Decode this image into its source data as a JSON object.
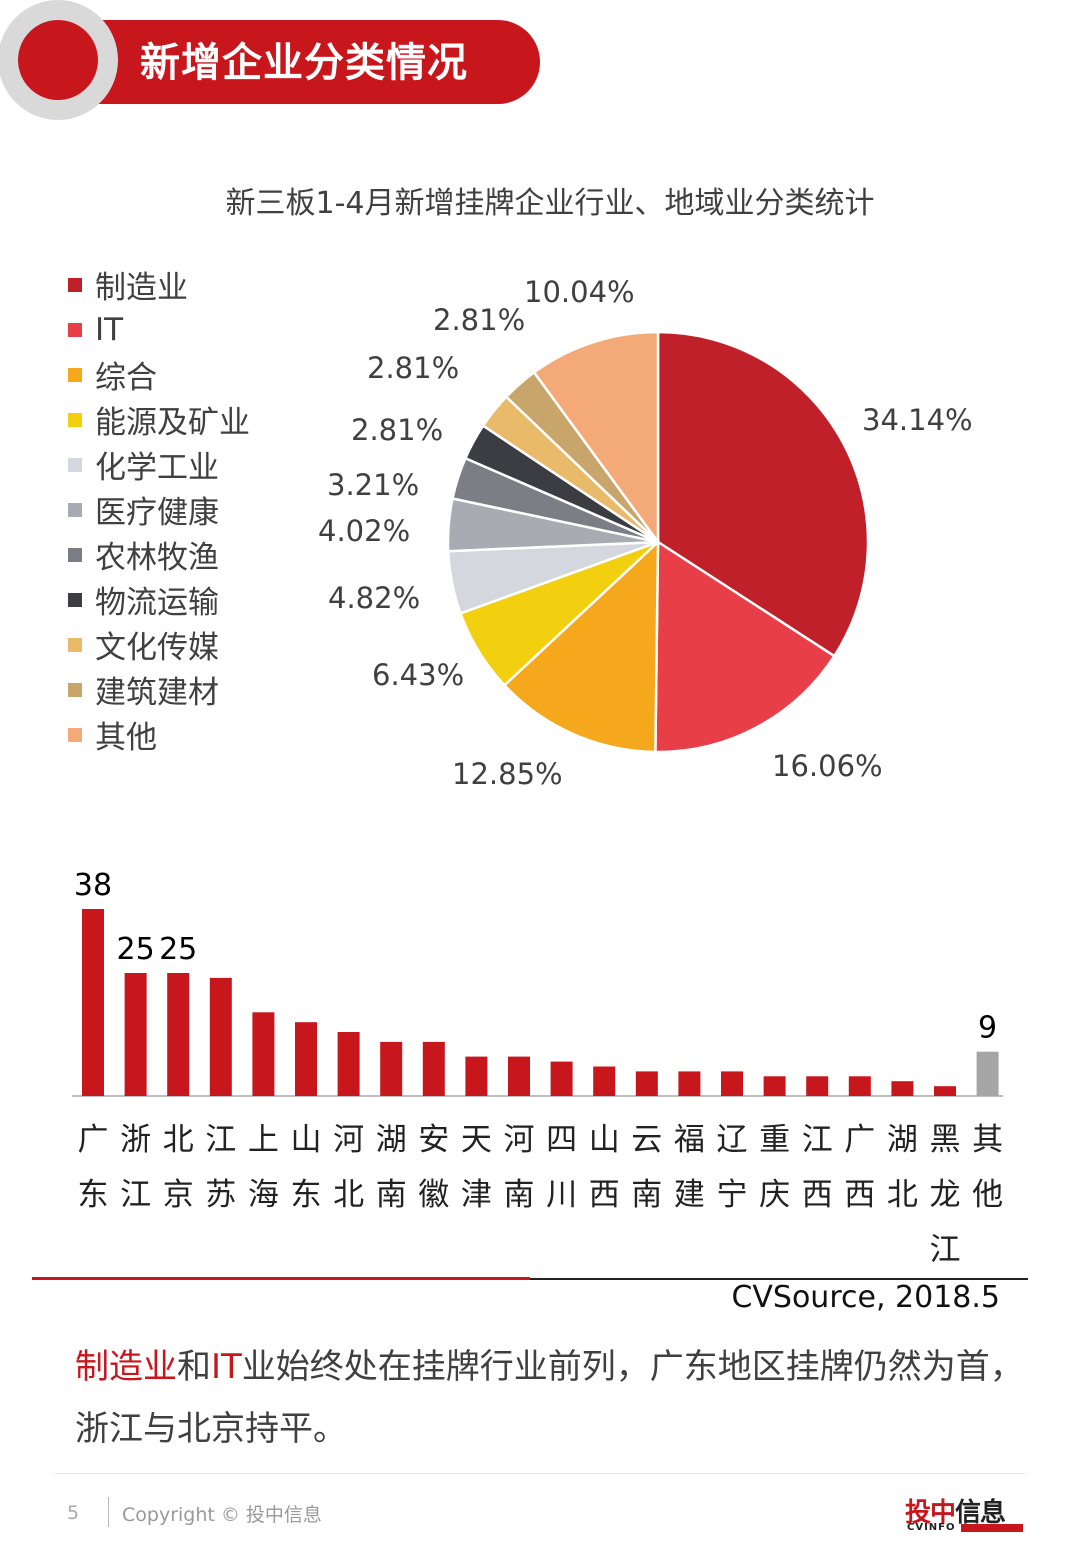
{
  "header": {
    "title": "新增企业分类情况"
  },
  "chart_title": "新三板1-4月新增挂牌企业行业、地域业分类统计",
  "chart_data": [
    {
      "type": "pie",
      "title": "新三板1-4月新增挂牌企业行业、地域业分类统计",
      "legend_position": "left",
      "slices": [
        {
          "name": "制造业",
          "value": 34.14,
          "label": "34.14%",
          "color": "#c0202a"
        },
        {
          "name": "IT",
          "value": 16.06,
          "label": "16.06%",
          "color": "#e83e48"
        },
        {
          "name": "综合",
          "value": 12.85,
          "label": "12.85%",
          "color": "#f5a81c"
        },
        {
          "name": "能源及矿业",
          "value": 6.43,
          "label": "6.43%",
          "color": "#f2d00f"
        },
        {
          "name": "化学工业",
          "value": 4.82,
          "label": "4.82%",
          "color": "#d4d7de"
        },
        {
          "name": "医疗健康",
          "value": 4.02,
          "label": "4.02%",
          "color": "#a8abb2"
        },
        {
          "name": "农林牧渔",
          "value": 3.21,
          "label": "3.21%",
          "color": "#7b7e84"
        },
        {
          "name": "物流运输",
          "value": 2.81,
          "label": "2.81%",
          "color": "#3b3d42"
        },
        {
          "name": "文化传媒",
          "value": 2.81,
          "label": "2.81%",
          "color": "#e9ba6a"
        },
        {
          "name": "建筑建材",
          "value": 2.81,
          "label": "2.81%",
          "color": "#c7a56b"
        },
        {
          "name": "其他",
          "value": 10.04,
          "label": "10.04%",
          "color": "#f4a978"
        }
      ]
    },
    {
      "type": "bar",
      "categories": [
        "广东",
        "浙江",
        "北京",
        "江苏",
        "上海",
        "山东",
        "河北",
        "湖南",
        "安徽",
        "天津",
        "河南",
        "四川",
        "山西",
        "云南",
        "福建",
        "辽宁",
        "重庆",
        "江西",
        "广西",
        "湖北",
        "黑龙江",
        "其他"
      ],
      "values": [
        38,
        25,
        25,
        24,
        17,
        15,
        13,
        11,
        11,
        8,
        8,
        7,
        6,
        5,
        5,
        5,
        4,
        4,
        4,
        3,
        2,
        9
      ],
      "data_labels": [
        "38",
        "25",
        "25",
        "",
        "",
        "",
        "",
        "",
        "",
        "",
        "",
        "",
        "",
        "",
        "",
        "",
        "",
        "",
        "",
        "",
        "",
        "9"
      ],
      "bar_color": "#c8161d",
      "highlight_color": "#a6a6a6",
      "grid": false
    }
  ],
  "source": "CVSource, 2018.5",
  "summary": {
    "hl1": "制造业",
    "t1": "和",
    "hl2": "IT",
    "t2": "业始终处在挂牌行业前列，广东地区挂牌仍然为首，浙江与北京持平。"
  },
  "footer": {
    "page": "5",
    "copyright": "Copyright © 投中信息",
    "logo_main_1": "投中",
    "logo_main_2": "信息",
    "logo_sub": "CVINFO"
  },
  "colors": {
    "accent": "#c8161d",
    "banner_circle": "#d9d9d9"
  }
}
